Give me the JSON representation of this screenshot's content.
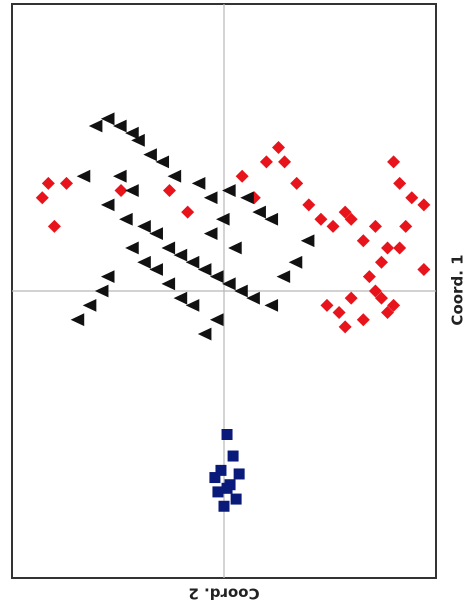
{
  "chart_data": {
    "type": "scatter",
    "title": "",
    "xlabel": "Coord. 1",
    "ylabel": "Coord. 2",
    "xlim": [
      -3.5,
      3.5
    ],
    "ylim": [
      -4,
      4
    ],
    "grid": false,
    "reference_lines": {
      "x": 0,
      "y": 0
    },
    "series": [
      {
        "marker": "diamond",
        "color": "#e8141c",
        "points": [
          [
            -3.0,
            1.3
          ],
          [
            -2.9,
            1.5
          ],
          [
            -2.8,
            0.9
          ],
          [
            -2.6,
            1.5
          ],
          [
            -1.7,
            1.4
          ],
          [
            -0.9,
            1.4
          ],
          [
            -0.6,
            1.1
          ],
          [
            0.3,
            1.6
          ],
          [
            0.5,
            1.3
          ],
          [
            0.7,
            1.8
          ],
          [
            0.9,
            2.0
          ],
          [
            1.0,
            1.8
          ],
          [
            1.2,
            1.5
          ],
          [
            1.4,
            1.2
          ],
          [
            1.6,
            1.0
          ],
          [
            1.8,
            0.9
          ],
          [
            2.0,
            1.1
          ],
          [
            2.1,
            1.0
          ],
          [
            2.3,
            0.7
          ],
          [
            2.5,
            0.9
          ],
          [
            2.6,
            0.4
          ],
          [
            2.7,
            0.6
          ],
          [
            2.9,
            0.6
          ],
          [
            3.0,
            0.9
          ],
          [
            2.8,
            1.8
          ],
          [
            2.9,
            1.5
          ],
          [
            3.1,
            1.3
          ],
          [
            3.3,
            1.2
          ],
          [
            2.4,
            0.2
          ],
          [
            2.5,
            0.0
          ],
          [
            2.6,
            -0.1
          ],
          [
            2.7,
            -0.3
          ],
          [
            2.8,
            -0.2
          ],
          [
            2.3,
            -0.4
          ],
          [
            3.3,
            0.3
          ],
          [
            1.9,
            -0.3
          ],
          [
            2.0,
            -0.5
          ],
          [
            2.1,
            -0.1
          ],
          [
            1.7,
            -0.2
          ]
        ]
      },
      {
        "marker": "triangle-left",
        "color": "#111111",
        "points": [
          [
            -2.1,
            2.3
          ],
          [
            -1.9,
            2.4
          ],
          [
            -1.7,
            2.3
          ],
          [
            -1.5,
            2.2
          ],
          [
            -1.4,
            2.1
          ],
          [
            -1.2,
            1.9
          ],
          [
            -1.0,
            1.8
          ],
          [
            -0.8,
            1.6
          ],
          [
            -0.4,
            1.5
          ],
          [
            -0.2,
            1.3
          ],
          [
            0.1,
            1.4
          ],
          [
            0.4,
            1.3
          ],
          [
            0.6,
            1.1
          ],
          [
            0.8,
            1.0
          ],
          [
            -1.9,
            1.2
          ],
          [
            -1.6,
            1.0
          ],
          [
            -1.3,
            0.9
          ],
          [
            -1.1,
            0.8
          ],
          [
            -0.9,
            0.6
          ],
          [
            -0.7,
            0.5
          ],
          [
            -0.5,
            0.4
          ],
          [
            -0.3,
            0.3
          ],
          [
            -0.1,
            0.2
          ],
          [
            0.1,
            0.1
          ],
          [
            0.3,
            0.0
          ],
          [
            0.5,
            -0.1
          ],
          [
            0.8,
            -0.2
          ],
          [
            -1.5,
            0.6
          ],
          [
            -1.3,
            0.4
          ],
          [
            -1.1,
            0.3
          ],
          [
            -0.9,
            0.1
          ],
          [
            -0.7,
            -0.1
          ],
          [
            -0.5,
            -0.2
          ],
          [
            -1.9,
            0.2
          ],
          [
            -2.0,
            0.0
          ],
          [
            -2.2,
            -0.2
          ],
          [
            -2.4,
            -0.4
          ],
          [
            -0.1,
            -0.4
          ],
          [
            -0.3,
            -0.6
          ],
          [
            1.0,
            0.2
          ],
          [
            1.2,
            0.4
          ],
          [
            1.4,
            0.7
          ],
          [
            0.2,
            0.6
          ],
          [
            -0.2,
            0.8
          ],
          [
            0.0,
            1.0
          ],
          [
            -1.5,
            1.4
          ],
          [
            -1.7,
            1.6
          ],
          [
            -2.3,
            1.6
          ]
        ]
      },
      {
        "marker": "square",
        "color": "#0a1a7a",
        "points": [
          [
            0.05,
            -2.0
          ],
          [
            0.15,
            -2.3
          ],
          [
            -0.05,
            -2.5
          ],
          [
            0.1,
            -2.7
          ],
          [
            -0.1,
            -2.8
          ],
          [
            0.2,
            -2.9
          ],
          [
            0.0,
            -3.0
          ],
          [
            -0.15,
            -2.6
          ],
          [
            0.25,
            -2.55
          ],
          [
            0.05,
            -2.75
          ]
        ]
      }
    ]
  }
}
